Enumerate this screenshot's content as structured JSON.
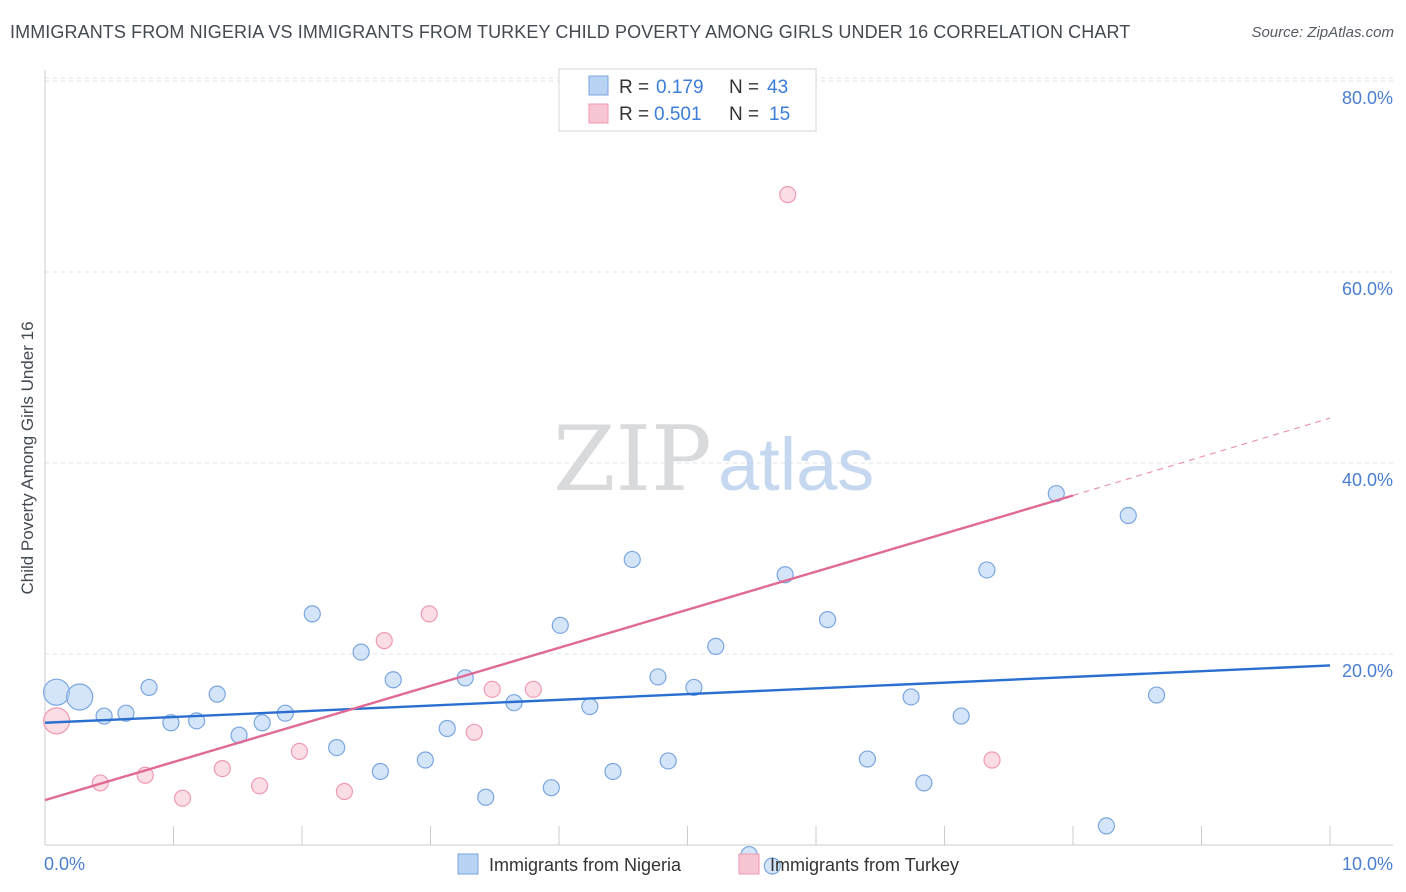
{
  "title": "IMMIGRANTS FROM NIGERIA VS IMMIGRANTS FROM TURKEY CHILD POVERTY AMONG GIRLS UNDER 16 CORRELATION CHART",
  "source": "Source: ZipAtlas.com",
  "watermark": {
    "part1": "ZIP",
    "part2": "atlas"
  },
  "colors": {
    "nigeria_fill": "#b9d3f5",
    "nigeria_stroke": "#7aa6e0",
    "nigeria_line": "#2a6fd0",
    "turkey_fill": "#f8c6d3",
    "turkey_stroke": "#ef9ab2",
    "turkey_line": "#e06a95",
    "grid": "#dde0e4",
    "axis_label": "#4a7fcf"
  },
  "legend": {
    "rows": [
      {
        "r_label": "R =",
        "r_value": "0.179",
        "n_label": "N =",
        "n_value": "43"
      },
      {
        "r_label": "R =",
        "r_value": "0.501",
        "n_label": "N =",
        "n_value": "15"
      }
    ]
  },
  "chart_data": {
    "type": "scatter",
    "title": "IMMIGRANTS FROM NIGERIA VS IMMIGRANTS FROM TURKEY CHILD POVERTY AMONG GIRLS UNDER 16 CORRELATION CHART",
    "xlabel": "",
    "ylabel": "Child Poverty Among Girls Under 16",
    "xlim": [
      0,
      10
    ],
    "ylim": [
      0,
      80
    ],
    "x_tick_labels": [
      "0.0%",
      "10.0%"
    ],
    "y_tick_labels": [
      "20.0%",
      "40.0%",
      "60.0%",
      "80.0%"
    ],
    "y_ticks": [
      20,
      40,
      60,
      80
    ],
    "series": [
      {
        "name": "Immigrants from Nigeria",
        "r": 0.179,
        "n": 43,
        "points": [
          {
            "x": 0.09,
            "y": 16.0,
            "big": true
          },
          {
            "x": 0.27,
            "y": 15.5,
            "big": true
          },
          {
            "x": 0.46,
            "y": 13.5
          },
          {
            "x": 0.63,
            "y": 13.8
          },
          {
            "x": 0.81,
            "y": 16.5
          },
          {
            "x": 0.98,
            "y": 12.8
          },
          {
            "x": 1.18,
            "y": 13.0
          },
          {
            "x": 1.34,
            "y": 15.8
          },
          {
            "x": 1.51,
            "y": 11.5
          },
          {
            "x": 1.69,
            "y": 12.8
          },
          {
            "x": 1.87,
            "y": 13.8
          },
          {
            "x": 2.08,
            "y": 24.2
          },
          {
            "x": 2.27,
            "y": 10.2
          },
          {
            "x": 2.46,
            "y": 20.2
          },
          {
            "x": 2.61,
            "y": 7.7
          },
          {
            "x": 2.71,
            "y": 17.3
          },
          {
            "x": 2.96,
            "y": 8.9
          },
          {
            "x": 3.13,
            "y": 12.2
          },
          {
            "x": 3.27,
            "y": 17.5
          },
          {
            "x": 3.43,
            "y": 5.0
          },
          {
            "x": 3.65,
            "y": 14.9
          },
          {
            "x": 4.01,
            "y": 23.0
          },
          {
            "x": 3.94,
            "y": 6.0
          },
          {
            "x": 4.24,
            "y": 14.5
          },
          {
            "x": 4.42,
            "y": 7.7
          },
          {
            "x": 4.57,
            "y": 29.9
          },
          {
            "x": 4.77,
            "y": 17.6
          },
          {
            "x": 4.85,
            "y": 8.8
          },
          {
            "x": 5.05,
            "y": 16.5
          },
          {
            "x": 5.22,
            "y": 20.8
          },
          {
            "x": 5.48,
            "y": -1.0
          },
          {
            "x": 5.66,
            "y": -2.2
          },
          {
            "x": 5.76,
            "y": 28.3
          },
          {
            "x": 6.09,
            "y": 23.6
          },
          {
            "x": 6.4,
            "y": 9.0
          },
          {
            "x": 6.74,
            "y": 15.5
          },
          {
            "x": 6.84,
            "y": 6.5
          },
          {
            "x": 7.13,
            "y": 13.5
          },
          {
            "x": 7.33,
            "y": 28.8
          },
          {
            "x": 7.87,
            "y": 36.8
          },
          {
            "x": 8.43,
            "y": 34.5
          },
          {
            "x": 8.26,
            "y": 2.0
          },
          {
            "x": 8.65,
            "y": 15.7
          }
        ],
        "trend": {
          "x0": 0,
          "y0": 12.8,
          "x1": 10,
          "y1": 18.8
        }
      },
      {
        "name": "Immigrants from Turkey",
        "r": 0.501,
        "n": 15,
        "points": [
          {
            "x": 0.09,
            "y": 13.0,
            "big": true
          },
          {
            "x": 0.43,
            "y": 6.5
          },
          {
            "x": 0.78,
            "y": 7.3
          },
          {
            "x": 1.07,
            "y": 4.9
          },
          {
            "x": 1.38,
            "y": 8.0
          },
          {
            "x": 1.67,
            "y": 6.2
          },
          {
            "x": 1.98,
            "y": 9.8
          },
          {
            "x": 2.33,
            "y": 5.6
          },
          {
            "x": 2.64,
            "y": 21.4
          },
          {
            "x": 2.99,
            "y": 24.2
          },
          {
            "x": 3.34,
            "y": 11.8
          },
          {
            "x": 3.48,
            "y": 16.3
          },
          {
            "x": 3.8,
            "y": 16.3
          },
          {
            "x": 5.78,
            "y": 68.1
          },
          {
            "x": 7.37,
            "y": 8.9
          }
        ],
        "trend": {
          "x0": 0,
          "y0": 4.7,
          "x1": 8.0,
          "y1": 36.6
        },
        "trend_dashed": {
          "x0": 8.0,
          "y0": 36.6,
          "x1": 10,
          "y1": 44.7
        }
      }
    ],
    "legend_position": "top-center"
  }
}
